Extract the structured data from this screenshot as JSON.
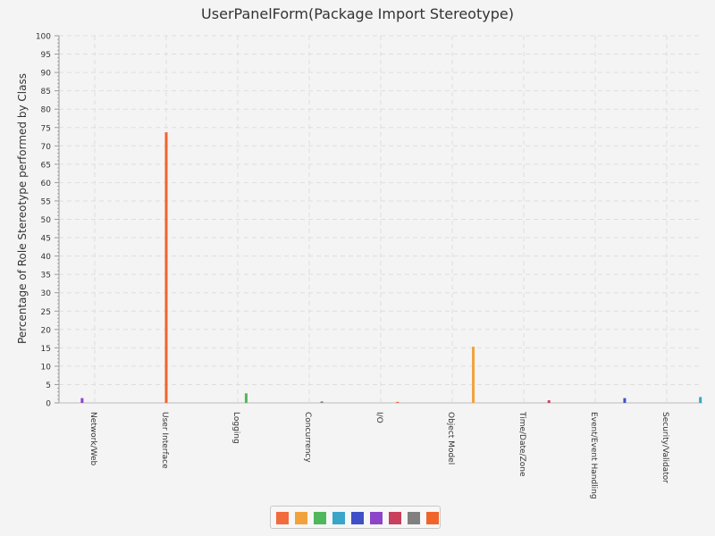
{
  "chart_data": {
    "type": "bar",
    "title": "UserPanelForm(Package Import Stereotype)",
    "xlabel": "",
    "ylabel": "Percentage of Role Stereotype performed by Class",
    "ylim": [
      0,
      100
    ],
    "ytick_step": 5,
    "grid": true,
    "legend_position": "bottom",
    "categories": [
      "Network/Web",
      "User Interface",
      "Logging",
      "Concurrency",
      "I/O",
      "Object Model",
      "Time/Date/Zone",
      "Event/Event Handling",
      "Security/Validator"
    ],
    "series": [
      {
        "color": "#f26b3c",
        "values": [
          0,
          0,
          0,
          0,
          0,
          0,
          0,
          0,
          0
        ]
      },
      {
        "color": "#f2a23c",
        "values": [
          0,
          0,
          0,
          0,
          0,
          0,
          0,
          0,
          0
        ]
      },
      {
        "color": "#4fb85c",
        "values": [
          0,
          0,
          0,
          0,
          0,
          0,
          0,
          0,
          0
        ]
      },
      {
        "color": "#3aa5c8",
        "values": [
          0,
          0,
          0,
          0,
          0,
          0,
          0,
          0,
          0
        ]
      },
      {
        "color": "#4050c8",
        "values": [
          0,
          0,
          0,
          0,
          0,
          0,
          0,
          0,
          0
        ]
      },
      {
        "color": "#8c44c8",
        "values": [
          1.3,
          0,
          0,
          0,
          0,
          0,
          0,
          0,
          0
        ]
      },
      {
        "color": "#c8405c",
        "values": [
          0,
          0,
          0,
          0,
          0,
          0,
          0,
          0,
          0
        ]
      },
      {
        "color": "#808080",
        "values": [
          0,
          0,
          0,
          0,
          0,
          0,
          0,
          0,
          0
        ]
      },
      {
        "color": "#f0642c",
        "values": [
          0,
          73.7,
          0,
          0,
          0,
          0,
          0,
          0,
          0
        ]
      },
      {
        "color": "#f2a23c",
        "values": [
          0,
          0,
          0,
          0,
          0,
          0,
          0,
          0,
          0
        ]
      },
      {
        "color": "#4fb85c",
        "values": [
          0,
          0,
          2.6,
          0,
          0,
          0,
          0,
          0,
          0
        ]
      },
      {
        "color": "#808080",
        "values": [
          0,
          0,
          0,
          0.4,
          0,
          0,
          0,
          0,
          0
        ]
      },
      {
        "color": "#f26b3c",
        "values": [
          0,
          0,
          0,
          0,
          0.3,
          0,
          0,
          0,
          0
        ]
      },
      {
        "color": "#f2a23c",
        "values": [
          0,
          0,
          0,
          0,
          0,
          15.3,
          0,
          0,
          0
        ]
      },
      {
        "color": "#c8405c",
        "values": [
          0,
          0,
          0,
          0,
          0,
          0,
          0.7,
          0,
          0
        ]
      },
      {
        "color": "#4050c8",
        "values": [
          0,
          0,
          0,
          0,
          0,
          0,
          0,
          1.3,
          0
        ]
      },
      {
        "color": "#3aa5c8",
        "values": [
          0,
          0,
          0,
          0,
          0,
          0,
          0,
          0,
          1.6
        ]
      }
    ],
    "legend_colors": [
      "#f26b3c",
      "#f2a23c",
      "#4fb85c",
      "#3aa5c8",
      "#4050c8",
      "#8c44c8",
      "#c8405c",
      "#808080",
      "#f0642c"
    ]
  }
}
